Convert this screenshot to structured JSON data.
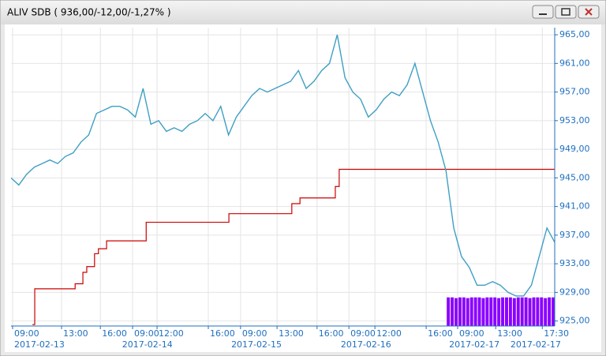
{
  "window": {
    "title": "ALIV SDB ( 936,00/-12,00/-1,27% )"
  },
  "chart_data": {
    "type": "line",
    "xlim": [
      0,
      140
    ],
    "ylim": [
      924.3,
      966
    ],
    "grid": true,
    "yticks": [
      {
        "value": 925,
        "label": "925,00"
      },
      {
        "value": 929,
        "label": "929,00"
      },
      {
        "value": 933,
        "label": "933,00"
      },
      {
        "value": 937,
        "label": "937,00"
      },
      {
        "value": 941,
        "label": "941,00"
      },
      {
        "value": 945,
        "label": "945,00"
      },
      {
        "value": 949,
        "label": "949,00"
      },
      {
        "value": 953,
        "label": "953,00"
      },
      {
        "value": 957,
        "label": "957,00"
      },
      {
        "value": 961,
        "label": "961,00"
      },
      {
        "value": 965,
        "label": "965,00"
      }
    ],
    "xticks": [
      {
        "value": 0.4,
        "label": "09:00"
      },
      {
        "value": 13,
        "label": "13:00"
      },
      {
        "value": 23,
        "label": "16:00"
      },
      {
        "value": 31.3,
        "label": "09:00"
      },
      {
        "value": 37.6,
        "label": "12:00"
      },
      {
        "value": 50.8,
        "label": "16:00"
      },
      {
        "value": 59.1,
        "label": "09:00"
      },
      {
        "value": 68.5,
        "label": "13:00"
      },
      {
        "value": 78.8,
        "label": "16:00"
      },
      {
        "value": 87,
        "label": "09:00"
      },
      {
        "value": 93.7,
        "label": "12:00"
      },
      {
        "value": 106.9,
        "label": "16:00"
      },
      {
        "value": 115,
        "label": "09:00"
      },
      {
        "value": 124.8,
        "label": "13:00"
      },
      {
        "value": 136.8,
        "label": "17:30"
      }
    ],
    "xdates": [
      {
        "value": 0.4,
        "label": "2017-02-13"
      },
      {
        "value": 28.2,
        "label": "2017-02-14"
      },
      {
        "value": 56.3,
        "label": "2017-02-15"
      },
      {
        "value": 84.5,
        "label": "2017-02-16"
      },
      {
        "value": 112.4,
        "label": "2017-02-17"
      },
      {
        "value": 128.2,
        "label": "2017-02-17"
      }
    ],
    "series": [
      {
        "type": "bar",
        "color": "#8a00ff",
        "x": [
          113,
          114,
          115,
          116,
          117,
          118,
          119,
          120,
          121,
          122,
          123,
          124,
          125,
          126,
          127,
          128,
          129,
          130,
          131,
          132,
          133,
          134,
          135,
          136,
          137,
          138,
          139,
          140
        ],
        "values": [
          928.3,
          928.3,
          928.2,
          928.3,
          928.3,
          928.2,
          928.3,
          928.3,
          928.3,
          928.2,
          928.3,
          928.3,
          928.3,
          928.2,
          928.3,
          928.3,
          928.3,
          928.2,
          928.3,
          928.3,
          928.3,
          928.2,
          928.3,
          928.3,
          928.3,
          928.2,
          928.3,
          928.3
        ]
      },
      {
        "type": "step",
        "color": "#cc0000",
        "x": [
          5.5,
          6.1,
          16.5,
          18.5,
          19.5,
          21.5,
          22.5,
          24.6,
          34.8,
          56.1,
          72.3,
          74.4,
          83.5,
          84.5,
          140
        ],
        "values": [
          924.5,
          929.5,
          930.2,
          931.8,
          932.6,
          934.4,
          935.1,
          936.2,
          938.8,
          940,
          941.4,
          942.2,
          943.8,
          946.2,
          946.2
        ]
      },
      {
        "type": "line",
        "color": "#3f9fc4",
        "x": [
          0,
          2,
          4,
          6,
          8,
          10,
          12,
          14,
          16,
          18,
          20,
          22,
          24,
          26,
          28,
          30,
          32,
          34,
          36,
          38,
          40,
          42,
          44,
          46,
          48,
          50,
          52,
          54,
          56,
          58,
          60,
          62,
          64,
          66,
          68,
          70,
          72,
          74,
          76,
          78,
          80,
          82,
          84,
          86,
          88,
          90,
          92,
          94,
          96,
          98,
          100,
          102,
          104,
          106,
          108,
          110,
          112,
          114,
          116,
          118,
          120,
          122,
          124,
          126,
          128,
          130,
          132,
          134,
          136,
          138,
          140
        ],
        "values": [
          945,
          944,
          945.5,
          946.5,
          947,
          947.5,
          947,
          948,
          948.5,
          950,
          951,
          954,
          954.5,
          955,
          955,
          954.5,
          953.5,
          957.5,
          952.5,
          953,
          951.5,
          952,
          951.5,
          952.5,
          953,
          954,
          953,
          955,
          951,
          953.5,
          955,
          956.5,
          957.5,
          957,
          957.5,
          958,
          958.5,
          960,
          957.5,
          958.5,
          960,
          961,
          965,
          959,
          957,
          956,
          953.5,
          954.5,
          956,
          957,
          956.5,
          958,
          961,
          957,
          953,
          950,
          946,
          938,
          934,
          932.5,
          930,
          930,
          930.5,
          930,
          929,
          928.5,
          928.5,
          930,
          934,
          938,
          936
        ]
      }
    ]
  }
}
